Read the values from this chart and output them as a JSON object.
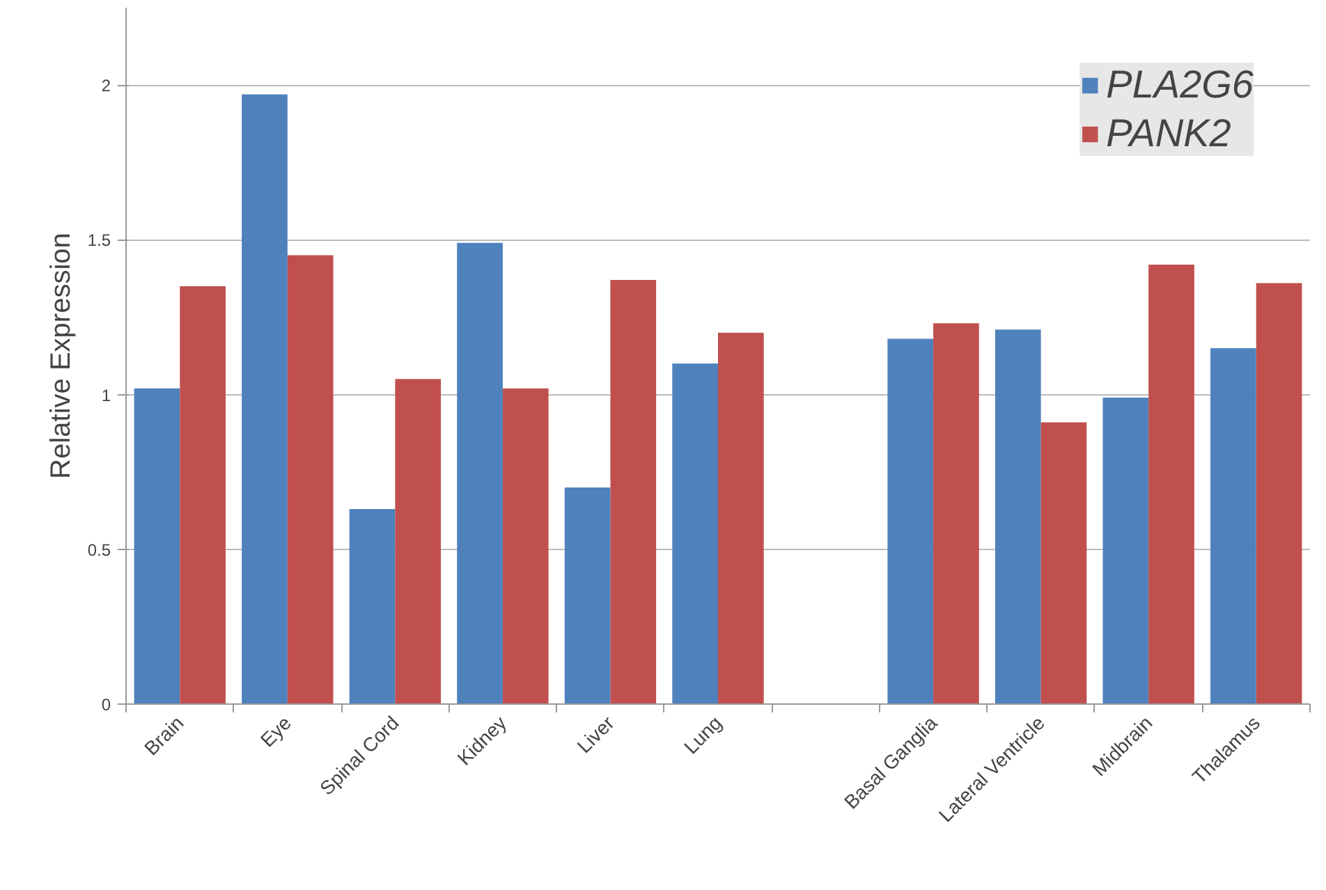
{
  "chart_data": {
    "type": "bar",
    "ylabel": "Relative Expression",
    "categories": [
      "Brain",
      "Eye",
      "Spinal Cord",
      "Kidney",
      "Liver",
      "Lung",
      null,
      "Basal Ganglia",
      "Lateral Ventricle",
      "Midbrain",
      "Thalamus"
    ],
    "series": [
      {
        "name": "PLA2G6",
        "color": "#4f81bd",
        "values": [
          1.02,
          1.97,
          0.63,
          1.49,
          0.7,
          1.1,
          null,
          1.18,
          1.21,
          0.99,
          1.15
        ]
      },
      {
        "name": "PANK2",
        "color": "#c0504d",
        "values": [
          1.35,
          1.45,
          1.05,
          1.02,
          1.37,
          1.2,
          null,
          1.23,
          0.91,
          1.42,
          1.36
        ]
      }
    ],
    "ylim": [
      0,
      2.25
    ],
    "yticks": [
      0,
      0.5,
      1,
      1.5,
      2
    ],
    "grid": "y",
    "legend": "top right"
  }
}
